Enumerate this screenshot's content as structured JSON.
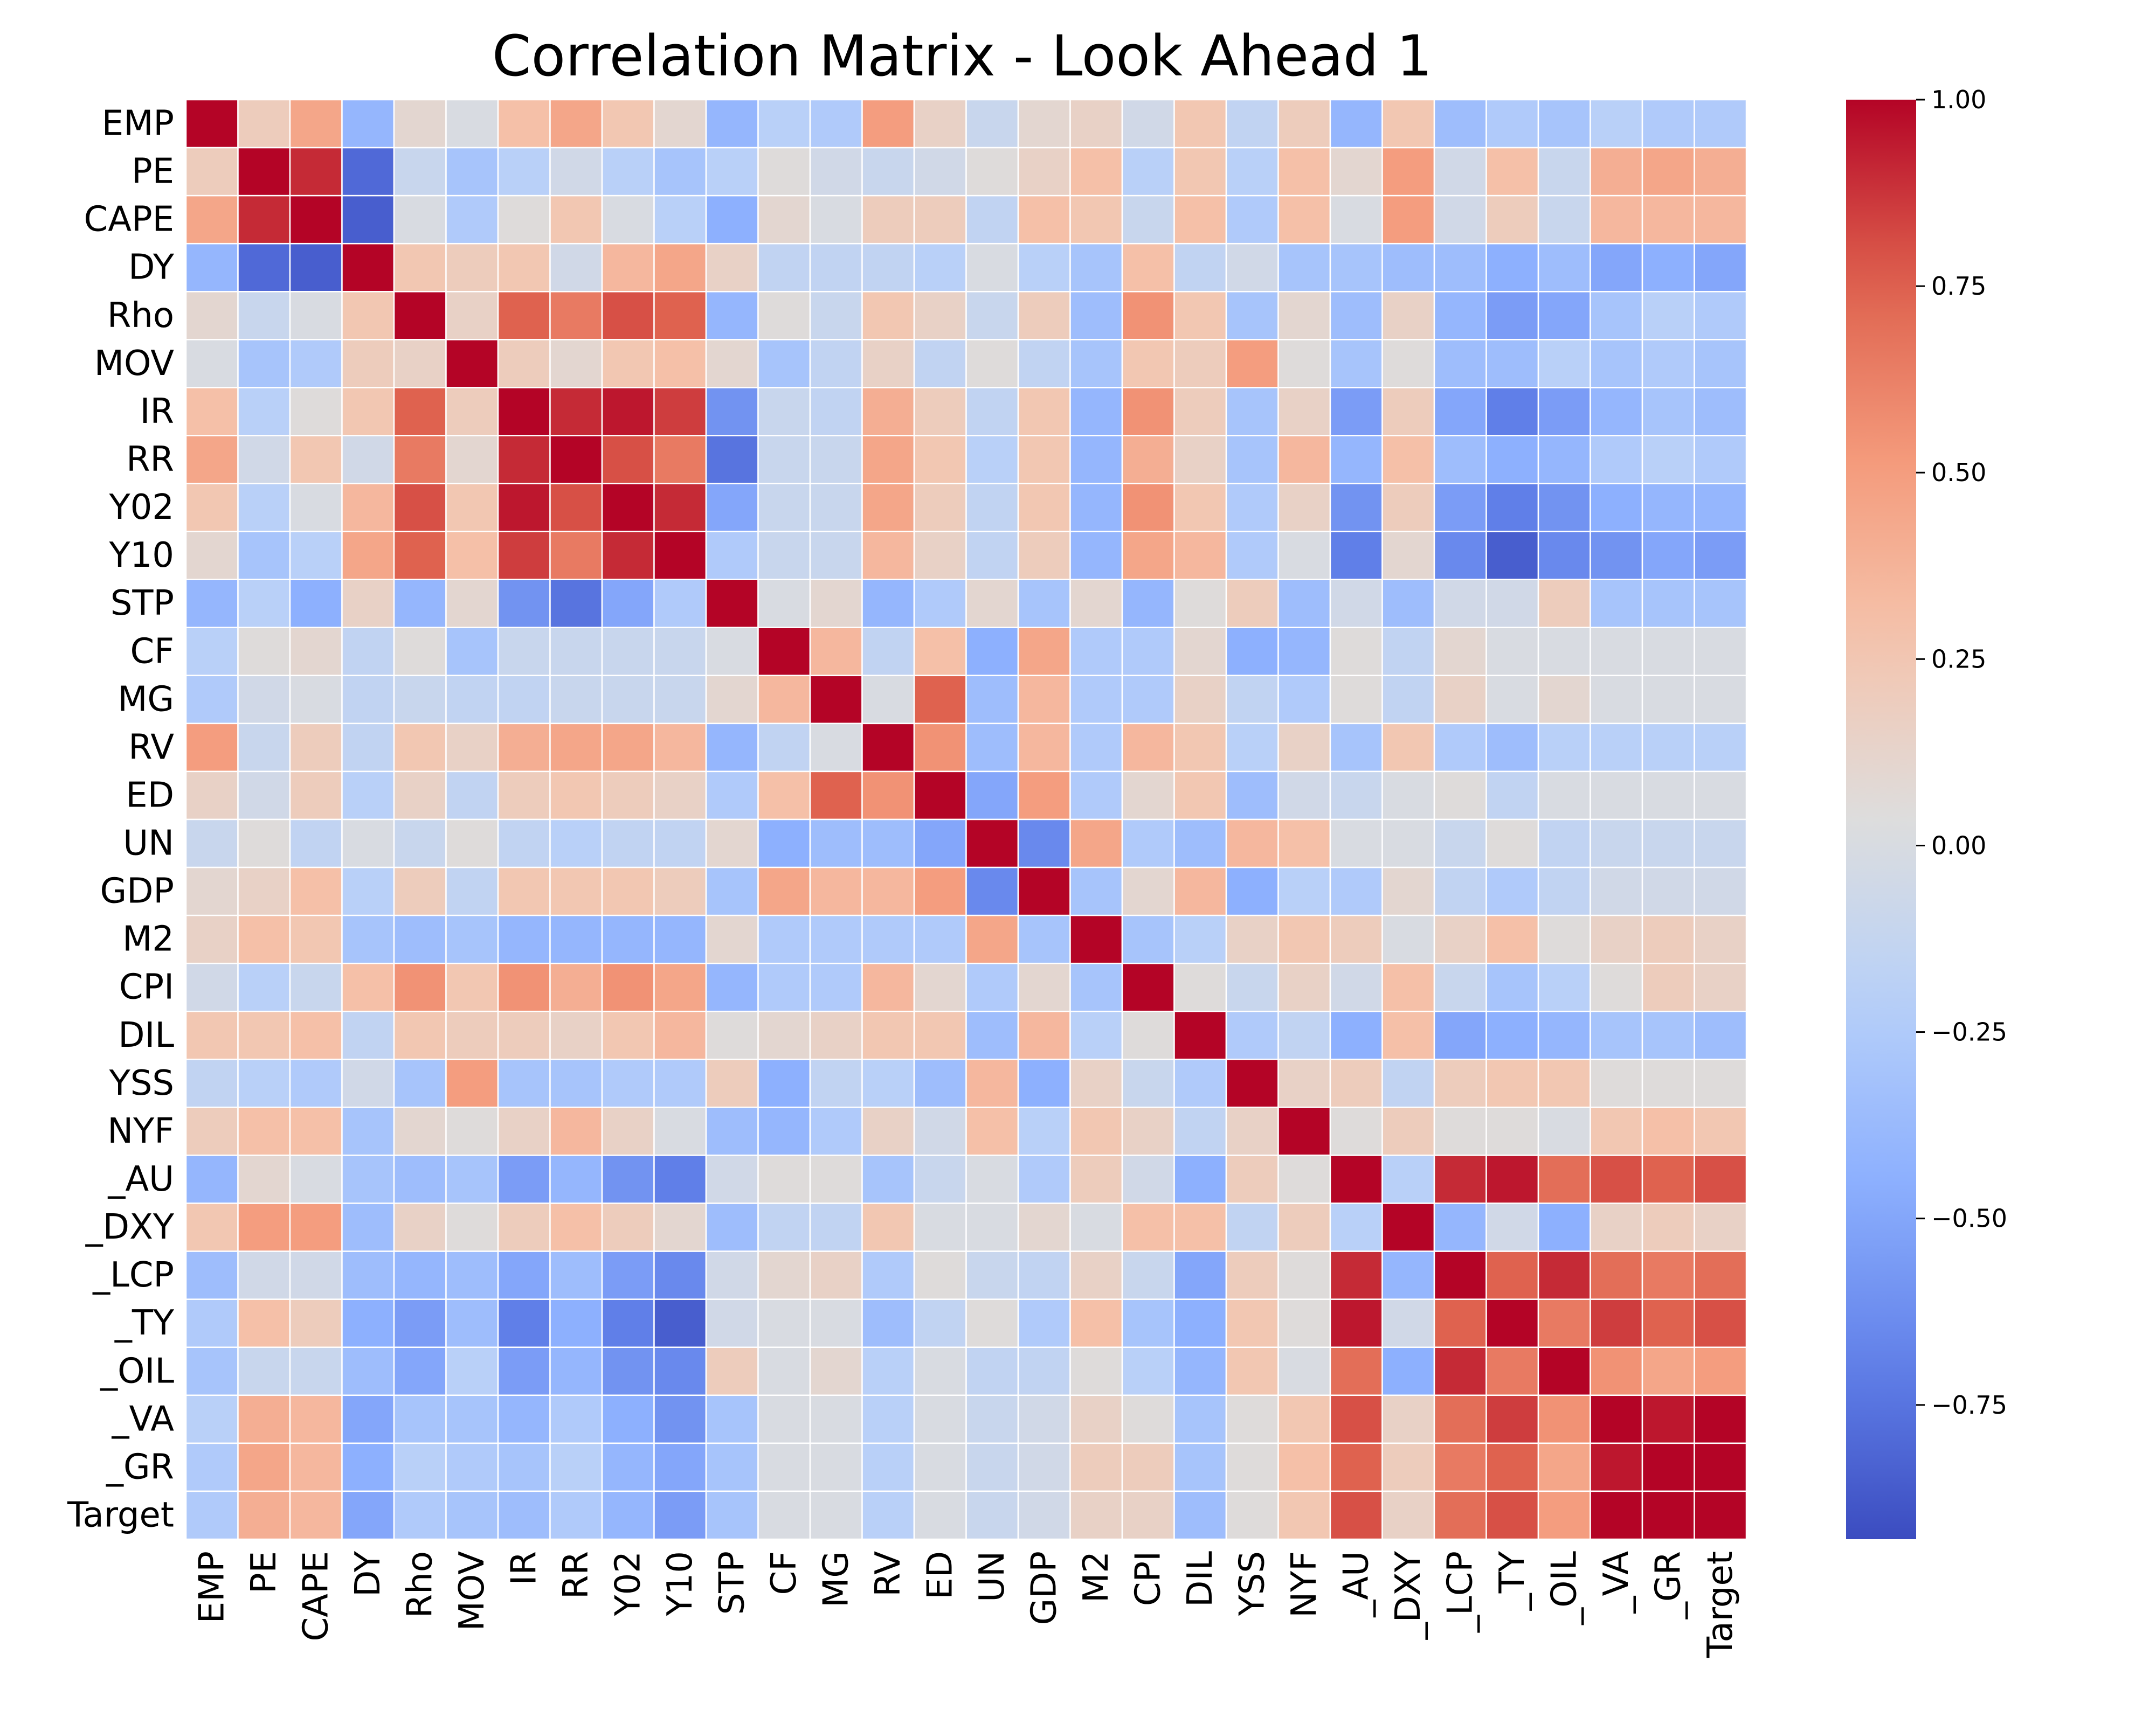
{
  "chart_data": {
    "type": "heatmap",
    "title": "Correlation Matrix - Look Ahead 1",
    "xlabel": "",
    "ylabel": "",
    "colormap": "coolwarm",
    "colors": {
      "low": "#3b4cc0",
      "mid": "#dddddd",
      "high": "#b40426",
      "cell_border": "#ffffff"
    },
    "labels": [
      "EMP",
      "PE",
      "CAPE",
      "DY",
      "Rho",
      "MOV ",
      "IR",
      "RR",
      "Y02",
      "Y10",
      "STP",
      "CF",
      "MG",
      "RV",
      "ED",
      "UN",
      "GDP",
      "M2",
      "CPI",
      "DIL",
      "YSS",
      "NYF",
      "_AU",
      "_DXY",
      "_LCP",
      "_TY",
      "_OIL",
      "_VA",
      "_GR",
      "Target"
    ],
    "colorbar": {
      "vmin": -0.93,
      "vmax": 1.0,
      "ticks": [
        1.0,
        0.75,
        0.5,
        0.25,
        0.0,
        -0.25,
        -0.5,
        -0.75
      ],
      "tick_labels": [
        "1.00",
        "0.75",
        "0.50",
        "0.25",
        "0.00",
        "−0.25",
        "−0.50",
        "−0.75"
      ]
    },
    "values": [
      [
        1.0,
        0.2,
        0.45,
        -0.4,
        0.1,
        0.0,
        0.3,
        0.45,
        0.25,
        0.1,
        -0.4,
        -0.2,
        -0.25,
        0.5,
        0.15,
        -0.1,
        0.1,
        0.15,
        -0.05,
        0.25,
        -0.15,
        0.2,
        -0.4,
        0.25,
        -0.35,
        -0.25,
        -0.3,
        -0.2,
        -0.25,
        -0.25
      ],
      [
        0.2,
        1.0,
        0.9,
        -0.8,
        -0.1,
        -0.3,
        -0.2,
        -0.05,
        -0.2,
        -0.3,
        -0.2,
        0.05,
        -0.05,
        -0.1,
        -0.05,
        0.05,
        0.15,
        0.3,
        -0.2,
        0.25,
        -0.2,
        0.3,
        0.1,
        0.5,
        -0.05,
        0.3,
        -0.1,
        0.4,
        0.45,
        0.4
      ],
      [
        0.45,
        0.9,
        1.0,
        -0.85,
        0.0,
        -0.25,
        0.05,
        0.25,
        0.0,
        -0.2,
        -0.45,
        0.1,
        0.0,
        0.2,
        0.2,
        -0.15,
        0.3,
        0.25,
        -0.1,
        0.3,
        -0.25,
        0.3,
        0.0,
        0.5,
        -0.05,
        0.2,
        -0.1,
        0.35,
        0.35,
        0.35
      ],
      [
        -0.4,
        -0.8,
        -0.85,
        1.0,
        0.25,
        0.2,
        0.25,
        -0.05,
        0.35,
        0.45,
        0.15,
        -0.15,
        -0.15,
        -0.15,
        -0.2,
        0.0,
        -0.2,
        -0.3,
        0.3,
        -0.15,
        -0.05,
        -0.3,
        -0.3,
        -0.35,
        -0.35,
        -0.45,
        -0.35,
        -0.5,
        -0.45,
        -0.5
      ],
      [
        0.1,
        -0.1,
        0.0,
        0.25,
        1.0,
        0.15,
        0.75,
        0.65,
        0.8,
        0.75,
        -0.4,
        0.05,
        -0.1,
        0.25,
        0.15,
        -0.1,
        0.2,
        -0.35,
        0.55,
        0.25,
        -0.3,
        0.1,
        -0.35,
        0.15,
        -0.4,
        -0.55,
        -0.5,
        -0.3,
        -0.2,
        -0.25
      ],
      [
        0.0,
        -0.3,
        -0.25,
        0.2,
        0.15,
        1.0,
        0.2,
        0.1,
        0.25,
        0.3,
        0.1,
        -0.3,
        -0.15,
        0.15,
        -0.15,
        0.05,
        -0.15,
        -0.3,
        0.25,
        0.2,
        0.5,
        0.05,
        -0.3,
        0.05,
        -0.35,
        -0.35,
        -0.2,
        -0.3,
        -0.25,
        -0.3
      ],
      [
        0.3,
        -0.2,
        0.05,
        0.25,
        0.75,
        0.2,
        1.0,
        0.9,
        0.95,
        0.85,
        -0.6,
        -0.1,
        -0.15,
        0.4,
        0.2,
        -0.15,
        0.25,
        -0.4,
        0.55,
        0.2,
        -0.3,
        0.15,
        -0.55,
        0.2,
        -0.5,
        -0.7,
        -0.55,
        -0.4,
        -0.3,
        -0.35
      ],
      [
        0.45,
        -0.05,
        0.25,
        -0.05,
        0.65,
        0.1,
        0.9,
        1.0,
        0.8,
        0.65,
        -0.75,
        -0.1,
        -0.1,
        0.45,
        0.25,
        -0.2,
        0.25,
        -0.4,
        0.4,
        0.15,
        -0.3,
        0.35,
        -0.4,
        0.3,
        -0.35,
        -0.45,
        -0.4,
        -0.25,
        -0.2,
        -0.25
      ],
      [
        0.25,
        -0.2,
        0.0,
        0.35,
        0.8,
        0.25,
        0.95,
        0.8,
        1.0,
        0.9,
        -0.5,
        -0.1,
        -0.1,
        0.45,
        0.2,
        -0.15,
        0.25,
        -0.4,
        0.55,
        0.25,
        -0.25,
        0.15,
        -0.6,
        0.2,
        -0.55,
        -0.7,
        -0.6,
        -0.45,
        -0.4,
        -0.4
      ],
      [
        0.1,
        -0.3,
        -0.2,
        0.45,
        0.75,
        0.3,
        0.85,
        0.65,
        0.9,
        1.0,
        -0.25,
        -0.1,
        -0.1,
        0.35,
        0.15,
        -0.15,
        0.2,
        -0.4,
        0.45,
        0.35,
        -0.25,
        0.0,
        -0.7,
        0.1,
        -0.65,
        -0.85,
        -0.65,
        -0.6,
        -0.5,
        -0.55
      ],
      [
        -0.4,
        -0.2,
        -0.45,
        0.15,
        -0.4,
        0.1,
        -0.6,
        -0.75,
        -0.5,
        -0.25,
        1.0,
        0.0,
        0.1,
        -0.4,
        -0.25,
        0.1,
        -0.3,
        0.1,
        -0.4,
        0.05,
        0.2,
        -0.35,
        -0.05,
        -0.35,
        -0.05,
        -0.05,
        0.2,
        -0.3,
        -0.3,
        -0.3
      ],
      [
        -0.2,
        0.05,
        0.1,
        -0.15,
        0.05,
        -0.3,
        -0.1,
        -0.1,
        -0.1,
        -0.1,
        0.0,
        1.0,
        0.35,
        -0.15,
        0.3,
        -0.45,
        0.45,
        -0.25,
        -0.25,
        0.1,
        -0.45,
        -0.4,
        0.05,
        -0.15,
        0.1,
        0.0,
        0.0,
        0.0,
        0.0,
        0.0
      ],
      [
        -0.25,
        -0.05,
        0.0,
        -0.15,
        -0.1,
        -0.15,
        -0.15,
        -0.1,
        -0.1,
        -0.1,
        0.1,
        0.35,
        1.0,
        0.0,
        0.75,
        -0.35,
        0.35,
        -0.25,
        -0.25,
        0.15,
        -0.15,
        -0.25,
        0.05,
        -0.15,
        0.15,
        0.0,
        0.1,
        0.0,
        0.0,
        0.0
      ],
      [
        0.5,
        -0.1,
        0.2,
        -0.15,
        0.25,
        0.15,
        0.4,
        0.45,
        0.45,
        0.35,
        -0.4,
        -0.15,
        0.0,
        1.0,
        0.55,
        -0.35,
        0.35,
        -0.25,
        0.35,
        0.25,
        -0.2,
        0.15,
        -0.3,
        0.25,
        -0.25,
        -0.35,
        -0.2,
        -0.2,
        -0.2,
        -0.2
      ],
      [
        0.15,
        -0.05,
        0.2,
        -0.2,
        0.15,
        -0.15,
        0.2,
        0.25,
        0.2,
        0.15,
        -0.25,
        0.3,
        0.75,
        0.55,
        1.0,
        -0.5,
        0.5,
        -0.25,
        0.1,
        0.25,
        -0.35,
        -0.05,
        -0.1,
        0.0,
        0.05,
        -0.15,
        0.0,
        0.0,
        0.0,
        0.0
      ],
      [
        -0.1,
        0.05,
        -0.15,
        0.0,
        -0.1,
        0.05,
        -0.15,
        -0.2,
        -0.15,
        -0.15,
        0.1,
        -0.45,
        -0.35,
        -0.35,
        -0.5,
        1.0,
        -0.65,
        0.45,
        -0.25,
        -0.35,
        0.35,
        0.3,
        0.0,
        0.0,
        -0.1,
        0.05,
        -0.15,
        -0.1,
        -0.1,
        -0.1
      ],
      [
        0.1,
        0.15,
        0.3,
        -0.2,
        0.2,
        -0.15,
        0.25,
        0.25,
        0.25,
        0.2,
        -0.3,
        0.45,
        0.35,
        0.35,
        0.5,
        -0.65,
        1.0,
        -0.3,
        0.1,
        0.35,
        -0.45,
        -0.2,
        -0.25,
        0.1,
        -0.15,
        -0.25,
        -0.15,
        -0.05,
        -0.05,
        -0.05
      ],
      [
        0.15,
        0.3,
        0.25,
        -0.3,
        -0.35,
        -0.3,
        -0.4,
        -0.4,
        -0.4,
        -0.4,
        0.1,
        -0.25,
        -0.25,
        -0.25,
        -0.25,
        0.45,
        -0.3,
        1.0,
        -0.3,
        -0.2,
        0.15,
        0.25,
        0.2,
        0.0,
        0.15,
        0.3,
        0.05,
        0.15,
        0.2,
        0.15
      ],
      [
        -0.05,
        -0.2,
        -0.1,
        0.3,
        0.55,
        0.25,
        0.55,
        0.4,
        0.55,
        0.45,
        -0.4,
        -0.25,
        -0.25,
        0.35,
        0.1,
        -0.25,
        0.1,
        -0.3,
        1.0,
        0.05,
        -0.1,
        0.15,
        -0.05,
        0.3,
        -0.1,
        -0.3,
        -0.2,
        0.05,
        0.2,
        0.15
      ],
      [
        0.25,
        0.25,
        0.3,
        -0.15,
        0.25,
        0.2,
        0.2,
        0.15,
        0.25,
        0.35,
        0.05,
        0.1,
        0.15,
        0.25,
        0.25,
        -0.35,
        0.35,
        -0.2,
        0.05,
        1.0,
        -0.25,
        -0.15,
        -0.45,
        0.3,
        -0.5,
        -0.45,
        -0.4,
        -0.3,
        -0.3,
        -0.35
      ],
      [
        -0.15,
        -0.2,
        -0.25,
        -0.05,
        -0.3,
        0.5,
        -0.3,
        -0.3,
        -0.25,
        -0.25,
        0.2,
        -0.45,
        -0.15,
        -0.2,
        -0.35,
        0.35,
        -0.45,
        0.15,
        -0.1,
        -0.25,
        1.0,
        0.15,
        0.2,
        -0.15,
        0.2,
        0.25,
        0.25,
        0.05,
        0.05,
        0.05
      ],
      [
        0.2,
        0.3,
        0.3,
        -0.3,
        0.1,
        0.05,
        0.15,
        0.35,
        0.15,
        0.0,
        -0.35,
        -0.4,
        -0.25,
        0.15,
        -0.05,
        0.3,
        -0.2,
        0.25,
        0.15,
        -0.15,
        0.15,
        1.0,
        0.05,
        0.2,
        0.05,
        0.05,
        0.0,
        0.25,
        0.3,
        0.25
      ],
      [
        -0.4,
        0.1,
        0.0,
        -0.3,
        -0.35,
        -0.3,
        -0.55,
        -0.4,
        -0.6,
        -0.7,
        -0.05,
        0.05,
        0.05,
        -0.3,
        -0.1,
        0.0,
        -0.25,
        0.2,
        -0.05,
        -0.45,
        0.2,
        0.05,
        1.0,
        -0.2,
        0.9,
        0.95,
        0.7,
        0.8,
        0.75,
        0.8
      ],
      [
        0.25,
        0.5,
        0.5,
        -0.35,
        0.15,
        0.05,
        0.2,
        0.3,
        0.2,
        0.1,
        -0.35,
        -0.15,
        -0.15,
        0.25,
        0.0,
        0.0,
        0.1,
        0.0,
        0.3,
        0.3,
        -0.15,
        0.2,
        -0.2,
        1.0,
        -0.4,
        -0.05,
        -0.45,
        0.15,
        0.2,
        0.15
      ],
      [
        -0.35,
        -0.05,
        -0.05,
        -0.35,
        -0.4,
        -0.35,
        -0.5,
        -0.35,
        -0.55,
        -0.65,
        -0.05,
        0.1,
        0.15,
        -0.25,
        0.05,
        -0.1,
        -0.15,
        0.15,
        -0.1,
        -0.5,
        0.2,
        0.05,
        0.9,
        -0.4,
        1.0,
        0.75,
        0.9,
        0.7,
        0.65,
        0.7
      ],
      [
        -0.25,
        0.3,
        0.2,
        -0.45,
        -0.55,
        -0.35,
        -0.7,
        -0.45,
        -0.7,
        -0.85,
        -0.05,
        0.0,
        0.0,
        -0.35,
        -0.15,
        0.05,
        -0.25,
        0.3,
        -0.3,
        -0.45,
        0.25,
        0.05,
        0.95,
        -0.05,
        0.75,
        1.0,
        0.65,
        0.85,
        0.75,
        0.8
      ],
      [
        -0.3,
        -0.1,
        -0.1,
        -0.35,
        -0.5,
        -0.2,
        -0.55,
        -0.4,
        -0.6,
        -0.65,
        0.2,
        0.0,
        0.1,
        -0.2,
        0.0,
        -0.15,
        -0.15,
        0.05,
        -0.2,
        -0.4,
        0.25,
        0.0,
        0.7,
        -0.45,
        0.9,
        0.65,
        1.0,
        0.55,
        0.45,
        0.5
      ],
      [
        -0.2,
        0.4,
        0.35,
        -0.5,
        -0.3,
        -0.3,
        -0.4,
        -0.25,
        -0.45,
        -0.6,
        -0.3,
        0.0,
        0.0,
        -0.2,
        0.0,
        -0.1,
        -0.05,
        0.15,
        0.05,
        -0.3,
        0.05,
        0.25,
        0.8,
        0.15,
        0.7,
        0.85,
        0.55,
        1.0,
        0.95,
        1.0
      ],
      [
        -0.25,
        0.45,
        0.35,
        -0.45,
        -0.2,
        -0.25,
        -0.3,
        -0.2,
        -0.4,
        -0.5,
        -0.3,
        0.0,
        0.0,
        -0.2,
        0.0,
        -0.1,
        -0.05,
        0.2,
        0.2,
        -0.3,
        0.05,
        0.3,
        0.75,
        0.2,
        0.65,
        0.75,
        0.45,
        0.95,
        1.0,
        1.0
      ],
      [
        -0.25,
        0.4,
        0.35,
        -0.5,
        -0.25,
        -0.3,
        -0.35,
        -0.25,
        -0.4,
        -0.55,
        -0.3,
        0.0,
        0.0,
        -0.2,
        0.0,
        -0.1,
        -0.05,
        0.15,
        0.15,
        -0.35,
        0.05,
        0.25,
        0.8,
        0.15,
        0.7,
        0.8,
        0.5,
        1.0,
        1.0,
        1.0
      ]
    ]
  }
}
